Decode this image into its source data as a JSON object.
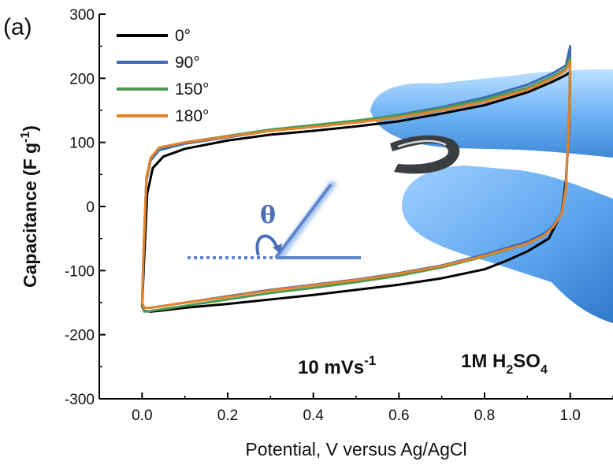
{
  "chart_data": {
    "type": "line",
    "panel_label": "(a)",
    "xlabel": "Potential, V versus Ag/AgCl",
    "ylabel": {
      "main": "Capacitance (F g",
      "sup": "-1",
      "end": ")"
    },
    "xlim": [
      -0.1,
      1.1
    ],
    "ylim": [
      -300,
      300
    ],
    "xticks": [
      0.0,
      0.2,
      0.4,
      0.6,
      0.8,
      1.0
    ],
    "xtick_labels": [
      "0.0",
      "0.2",
      "0.4",
      "0.6",
      "0.8",
      "1.0"
    ],
    "yticks": [
      -300,
      -200,
      -100,
      0,
      100,
      200,
      300
    ],
    "ytick_labels": [
      "-300",
      "-200",
      "-100",
      "0",
      "100",
      "200",
      "300"
    ],
    "legend_position": "top-left",
    "grid": false,
    "series": [
      {
        "name": "0°",
        "color": "#000000",
        "x": [
          0.0,
          0.005,
          0.012,
          0.025,
          0.05,
          0.1,
          0.2,
          0.3,
          0.4,
          0.5,
          0.6,
          0.7,
          0.8,
          0.9,
          0.96,
          0.99,
          1.0,
          0.998,
          0.99,
          0.98,
          0.95,
          0.9,
          0.85,
          0.8,
          0.7,
          0.6,
          0.5,
          0.4,
          0.3,
          0.2,
          0.1,
          0.05,
          0.02,
          0.005,
          0.0
        ],
        "y": [
          -155,
          -80,
          20,
          60,
          78,
          90,
          103,
          112,
          118,
          125,
          133,
          145,
          158,
          178,
          195,
          205,
          210,
          130,
          40,
          -10,
          -50,
          -70,
          -85,
          -98,
          -112,
          -122,
          -130,
          -138,
          -145,
          -152,
          -158,
          -162,
          -164,
          -163,
          -155
        ]
      },
      {
        "name": "90°",
        "color": "#3d6bb3",
        "x": [
          0.0,
          0.004,
          0.01,
          0.02,
          0.04,
          0.1,
          0.2,
          0.3,
          0.4,
          0.5,
          0.6,
          0.7,
          0.8,
          0.9,
          0.96,
          0.99,
          1.0,
          0.998,
          0.99,
          0.98,
          0.96,
          0.94,
          0.9,
          0.85,
          0.8,
          0.7,
          0.6,
          0.5,
          0.4,
          0.3,
          0.2,
          0.1,
          0.05,
          0.02,
          0.005,
          0.0
        ],
        "y": [
          -150,
          -60,
          40,
          72,
          88,
          98,
          108,
          118,
          125,
          133,
          143,
          155,
          170,
          190,
          208,
          220,
          250,
          150,
          30,
          -10,
          -30,
          -42,
          -55,
          -65,
          -75,
          -92,
          -104,
          -114,
          -122,
          -130,
          -140,
          -150,
          -155,
          -158,
          -158,
          -150
        ]
      },
      {
        "name": "150°",
        "color": "#4c9a52",
        "x": [
          0.0,
          0.004,
          0.01,
          0.02,
          0.04,
          0.1,
          0.2,
          0.3,
          0.4,
          0.5,
          0.6,
          0.7,
          0.8,
          0.9,
          0.96,
          0.99,
          1.0,
          0.998,
          0.99,
          0.98,
          0.96,
          0.94,
          0.9,
          0.85,
          0.8,
          0.7,
          0.6,
          0.5,
          0.4,
          0.3,
          0.2,
          0.1,
          0.05,
          0.02,
          0.005,
          0.0
        ],
        "y": [
          -152,
          -62,
          42,
          75,
          92,
          100,
          110,
          120,
          127,
          134,
          142,
          153,
          167,
          185,
          203,
          215,
          232,
          145,
          28,
          -12,
          -32,
          -45,
          -58,
          -68,
          -78,
          -95,
          -108,
          -118,
          -127,
          -135,
          -145,
          -155,
          -160,
          -163,
          -164,
          -152
        ]
      },
      {
        "name": "180°",
        "color": "#e8822a",
        "x": [
          0.0,
          0.004,
          0.01,
          0.02,
          0.04,
          0.1,
          0.2,
          0.3,
          0.4,
          0.5,
          0.6,
          0.7,
          0.8,
          0.9,
          0.96,
          0.99,
          1.0,
          0.998,
          0.99,
          0.98,
          0.96,
          0.94,
          0.9,
          0.85,
          0.8,
          0.7,
          0.6,
          0.5,
          0.4,
          0.3,
          0.2,
          0.1,
          0.05,
          0.02,
          0.005,
          0.0
        ],
        "y": [
          -150,
          -60,
          45,
          76,
          92,
          100,
          109,
          118,
          124,
          131,
          139,
          150,
          163,
          182,
          200,
          212,
          225,
          142,
          28,
          -12,
          -32,
          -45,
          -58,
          -67,
          -77,
          -93,
          -105,
          -115,
          -123,
          -131,
          -141,
          -150,
          -155,
          -158,
          -158,
          -150
        ]
      }
    ],
    "annotations": [
      {
        "id": "scan-rate",
        "text": "10 mVs",
        "sup": "-1"
      },
      {
        "id": "electrolyte",
        "parts": [
          "1M H",
          "2",
          "SO",
          "4"
        ]
      },
      {
        "id": "angle-symbol",
        "text": "θ"
      }
    ]
  }
}
